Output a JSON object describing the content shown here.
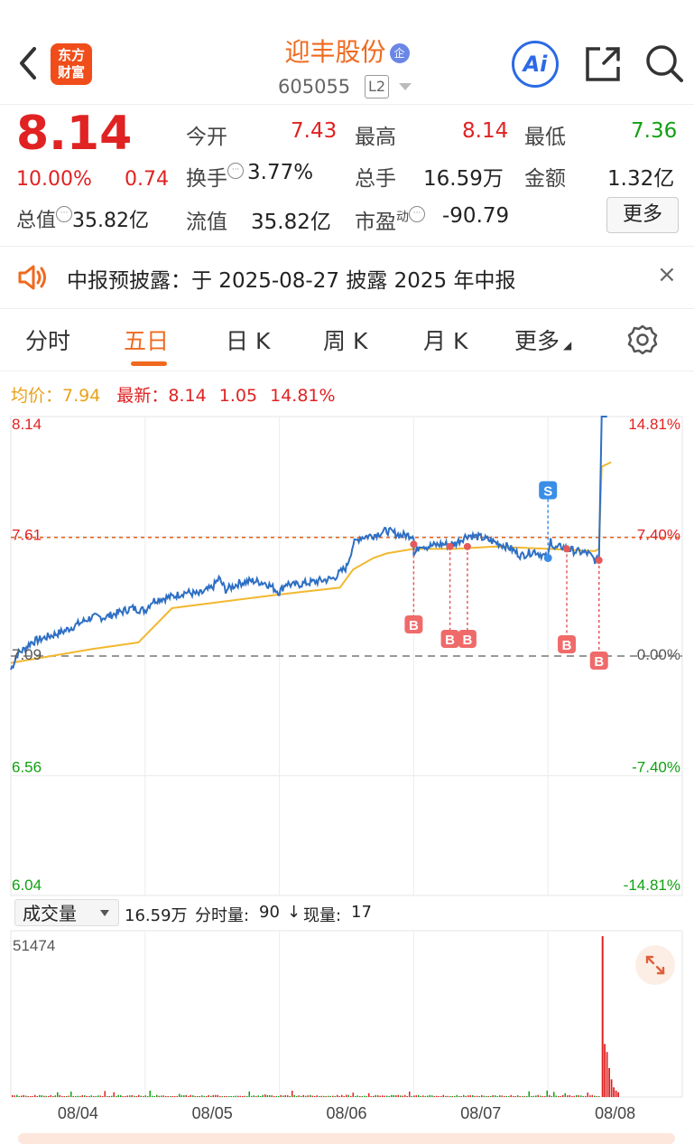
{
  "header": {
    "logo_text_line1": "东方",
    "logo_text_line2": "财富",
    "stock_name": "迎丰股份",
    "name_badge": "企",
    "stock_code": "605055",
    "level_badge": "L2",
    "ai_label": "Ai"
  },
  "quote": {
    "price": "8.14",
    "change_pct": "10.00%",
    "change_amt": "0.74",
    "total_value_label": "总值",
    "total_value": "35.82亿",
    "open_label": "今开",
    "open": "7.43",
    "turnover_label": "换手",
    "turnover": "3.77%",
    "float_value_label": "流值",
    "float_value": "35.82亿",
    "high_label": "最高",
    "high": "8.14",
    "volume_label": "总手",
    "volume": "16.59万",
    "pe_label": "市盈",
    "pe_sup": "动",
    "pe": "-90.79",
    "low_label": "最低",
    "low": "7.36",
    "amount_label": "金额",
    "amount": "1.32亿",
    "more_button": "更多"
  },
  "notice": {
    "text": "中报预披露：于 2025-08-27 披露 2025 年中报",
    "close": "×"
  },
  "tabs": [
    {
      "label": "分时"
    },
    {
      "label": "五日"
    },
    {
      "label": "日 K"
    },
    {
      "label": "周 K"
    },
    {
      "label": "月 K"
    },
    {
      "label": "更多"
    }
  ],
  "legend": {
    "avg_label": "均价：",
    "avg_value": "7.94",
    "latest_label": "最新：",
    "latest_value": "8.14",
    "latest_change": "1.05",
    "latest_pct": "14.81%"
  },
  "volume_panel": {
    "selector": "成交量",
    "info_total": "16.59万",
    "info_minute_label": "分时量:",
    "info_minute": "90",
    "info_arrow": "↓",
    "info_now_label": "现量:",
    "info_now": "17",
    "max_label": "51474"
  },
  "colors": {
    "up": "#e02222",
    "down": "#12a012",
    "accent": "#ef6a1f",
    "price_line": "#2e6fc4",
    "avg_line": "#f2b830"
  },
  "chart_data": {
    "type": "line",
    "title": "",
    "x_days": [
      "08/04",
      "08/05",
      "08/06",
      "08/07",
      "08/08"
    ],
    "y_left_ticks": [
      "8.14",
      "7.61",
      "7.09",
      "6.56",
      "6.04"
    ],
    "y_right_ticks": [
      "14.81%",
      "7.40%",
      "0.00%",
      "-7.40%",
      "-14.81%"
    ],
    "ylim": [
      6.04,
      8.14
    ],
    "prev_close": 7.09,
    "reference_line": 7.61,
    "series": [
      {
        "key": "price",
        "points": [
          [
            0,
            7.03
          ],
          [
            0.05,
            7.1
          ],
          [
            0.1,
            7.12
          ],
          [
            0.15,
            7.15
          ],
          [
            0.2,
            7.16
          ],
          [
            0.3,
            7.18
          ],
          [
            0.4,
            7.2
          ],
          [
            0.5,
            7.23
          ],
          [
            0.6,
            7.26
          ],
          [
            0.7,
            7.26
          ],
          [
            0.8,
            7.28
          ],
          [
            0.9,
            7.3
          ],
          [
            1.0,
            7.29
          ],
          [
            1.05,
            7.33
          ],
          [
            1.1,
            7.34
          ],
          [
            1.2,
            7.35
          ],
          [
            1.3,
            7.37
          ],
          [
            1.4,
            7.36
          ],
          [
            1.5,
            7.39
          ],
          [
            1.55,
            7.43
          ],
          [
            1.6,
            7.38
          ],
          [
            1.7,
            7.41
          ],
          [
            1.8,
            7.42
          ],
          [
            1.9,
            7.41
          ],
          [
            2.0,
            7.37
          ],
          [
            2.05,
            7.41
          ],
          [
            2.1,
            7.4
          ],
          [
            2.2,
            7.41
          ],
          [
            2.3,
            7.42
          ],
          [
            2.4,
            7.43
          ],
          [
            2.5,
            7.48
          ],
          [
            2.55,
            7.58
          ],
          [
            2.6,
            7.61
          ],
          [
            2.7,
            7.62
          ],
          [
            2.8,
            7.64
          ],
          [
            2.9,
            7.62
          ],
          [
            3.0,
            7.62
          ],
          [
            3.0,
            7.53
          ],
          [
            3.05,
            7.58
          ],
          [
            3.1,
            7.57
          ],
          [
            3.2,
            7.58
          ],
          [
            3.3,
            7.58
          ],
          [
            3.4,
            7.62
          ],
          [
            3.5,
            7.61
          ],
          [
            3.6,
            7.59
          ],
          [
            3.7,
            7.57
          ],
          [
            3.8,
            7.53
          ],
          [
            3.9,
            7.55
          ],
          [
            4.0,
            7.52
          ],
          [
            4.02,
            7.6
          ],
          [
            4.05,
            7.56
          ],
          [
            4.1,
            7.57
          ],
          [
            4.2,
            7.55
          ],
          [
            4.3,
            7.54
          ],
          [
            4.35,
            7.51
          ],
          [
            4.38,
            7.51
          ],
          [
            4.4,
            8.14
          ]
        ]
      },
      {
        "key": "average",
        "points": [
          [
            0,
            7.06
          ],
          [
            0.3,
            7.09
          ],
          [
            0.6,
            7.12
          ],
          [
            0.95,
            7.15
          ],
          [
            1.2,
            7.3
          ],
          [
            1.6,
            7.33
          ],
          [
            2.0,
            7.36
          ],
          [
            2.45,
            7.39
          ],
          [
            2.55,
            7.47
          ],
          [
            2.7,
            7.52
          ],
          [
            2.8,
            7.54
          ],
          [
            3.0,
            7.56
          ],
          [
            3.0,
            7.56
          ],
          [
            3.3,
            7.56
          ],
          [
            3.6,
            7.57
          ],
          [
            4.0,
            7.56
          ],
          [
            4.35,
            7.55
          ],
          [
            4.38,
            7.56
          ],
          [
            4.4,
            7.92
          ],
          [
            4.47,
            7.94
          ]
        ]
      }
    ],
    "markers": [
      {
        "label": "B",
        "x": 3.0,
        "y": 7.58
      },
      {
        "label": "B",
        "x": 3.27,
        "y": 7.57
      },
      {
        "label": "B",
        "x": 3.4,
        "y": 7.57
      },
      {
        "label": "S",
        "x": 4.0,
        "y": 7.52
      },
      {
        "label": "B",
        "x": 4.14,
        "y": 7.56
      },
      {
        "label": "B",
        "x": 4.38,
        "y": 7.51
      }
    ],
    "volume": {
      "max": 51474,
      "spike_x": 4.4,
      "spike_value": 51474
    }
  }
}
